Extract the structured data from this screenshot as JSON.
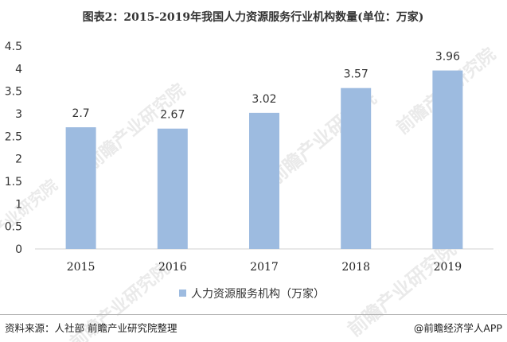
{
  "chart_data": {
    "type": "bar",
    "title": "图表2：2015-2019年我国人力资源服务行业机构数量(单位：万家)",
    "categories": [
      "2015",
      "2016",
      "2017",
      "2018",
      "2019"
    ],
    "series": [
      {
        "name": "人力资源服务机构（万家）",
        "values": [
          2.7,
          2.67,
          3.02,
          3.57,
          3.96
        ]
      }
    ],
    "data_labels": [
      "2.7",
      "2.67",
      "3.02",
      "3.57",
      "3.96"
    ],
    "y_ticks": [
      "0",
      "0.5",
      "1",
      "1.5",
      "2",
      "2.5",
      "3",
      "3.5",
      "4",
      "4.5"
    ],
    "ylim": [
      0,
      4.5
    ],
    "xlabel": "",
    "ylabel": "",
    "grid": false,
    "legend_position": "bottom",
    "bar_color": "#9dbbe0"
  },
  "footer": {
    "source": "资料来源：人社部 前瞻产业研究院整理",
    "brand": "@前瞻经济学人APP"
  },
  "watermark": {
    "text": "前瞻产业研究院"
  }
}
